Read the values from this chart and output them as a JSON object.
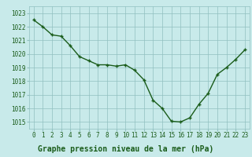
{
  "x": [
    0,
    1,
    2,
    3,
    4,
    5,
    6,
    7,
    8,
    9,
    10,
    11,
    12,
    13,
    14,
    15,
    16,
    17,
    18,
    19,
    20,
    21,
    22,
    23
  ],
  "y": [
    1022.5,
    1022.0,
    1021.4,
    1021.3,
    1020.6,
    1019.8,
    1019.5,
    1019.2,
    1019.2,
    1019.1,
    1019.2,
    1018.8,
    1018.1,
    1016.6,
    1016.0,
    1015.05,
    1015.0,
    1015.3,
    1016.3,
    1017.1,
    1018.5,
    1019.0,
    1019.6,
    1020.3
  ],
  "line_color": "#1a5c1a",
  "marker": "+",
  "marker_size": 3.5,
  "linewidth": 1.0,
  "bg_color": "#c8eaea",
  "grid_color": "#90c0c0",
  "xlabel": "Graphe pression niveau de la mer (hPa)",
  "tick_color": "#1a5c1a",
  "ylim": [
    1014.5,
    1023.5
  ],
  "yticks": [
    1015,
    1016,
    1017,
    1018,
    1019,
    1020,
    1021,
    1022,
    1023
  ],
  "xticks": [
    0,
    1,
    2,
    3,
    4,
    5,
    6,
    7,
    8,
    9,
    10,
    11,
    12,
    13,
    14,
    15,
    16,
    17,
    18,
    19,
    20,
    21,
    22,
    23
  ],
  "xtick_labels": [
    "0",
    "1",
    "2",
    "3",
    "4",
    "5",
    "6",
    "7",
    "8",
    "9",
    "10",
    "11",
    "12",
    "13",
    "14",
    "15",
    "16",
    "17",
    "18",
    "19",
    "20",
    "21",
    "22",
    "23"
  ],
  "font_size": 5.5,
  "xlabel_fontsize": 7.0,
  "xlabel_color": "#1a5c1a",
  "markeredgewidth": 1.0
}
